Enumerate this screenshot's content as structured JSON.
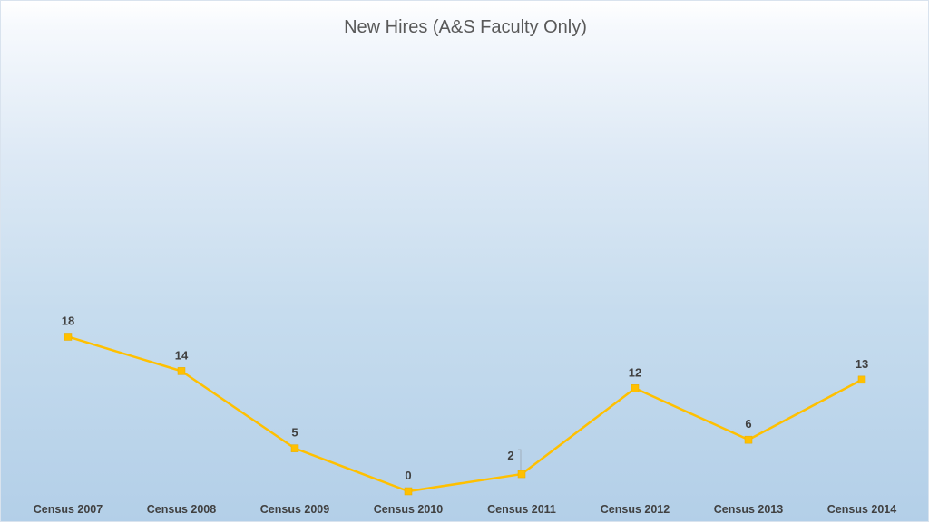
{
  "chart_data": {
    "type": "line",
    "title": "New Hires (A&S Faculty Only)",
    "categories": [
      "Census 2007",
      "Census 2008",
      "Census 2009",
      "Census 2010",
      "Census 2011",
      "Census 2012",
      "Census 2013",
      "Census 2014"
    ],
    "series": [
      {
        "values": [
          18,
          14,
          5,
          0,
          2,
          12,
          6,
          13
        ],
        "color": "#FFC000"
      }
    ],
    "ylim": [
      0,
      55
    ],
    "grid": false,
    "legend": "none",
    "data_labels": true,
    "background": "light-blue-gradient"
  }
}
